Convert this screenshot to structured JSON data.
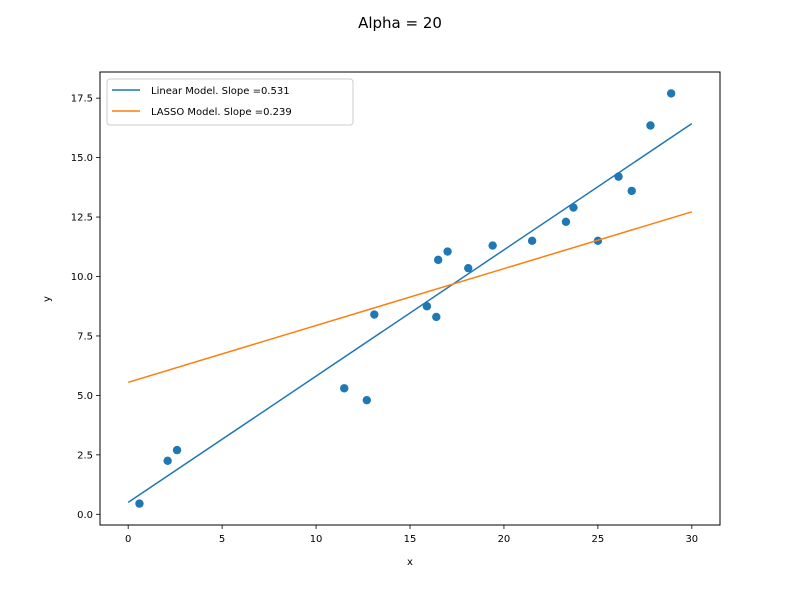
{
  "chart_data": {
    "type": "scatter",
    "title": "Alpha = 20",
    "xlabel": "x",
    "ylabel": "y",
    "xlim": [
      -1.5,
      31.5
    ],
    "ylim": [
      -0.45,
      18.6
    ],
    "xticks": [
      0,
      5,
      10,
      15,
      20,
      25,
      30
    ],
    "xtick_labels": [
      "0",
      "5",
      "10",
      "15",
      "20",
      "25",
      "30"
    ],
    "yticks": [
      0.0,
      2.5,
      5.0,
      7.5,
      10.0,
      12.5,
      15.0,
      17.5
    ],
    "ytick_labels": [
      "0.0",
      "2.5",
      "5.0",
      "7.5",
      "10.0",
      "12.5",
      "15.0",
      "17.5"
    ],
    "grid": false,
    "legend_position": "top-left",
    "points": {
      "color": "#1f77b4",
      "x": [
        0.6,
        2.1,
        2.6,
        11.5,
        12.7,
        13.1,
        15.9,
        16.4,
        16.5,
        17.0,
        18.1,
        19.4,
        21.5,
        23.3,
        23.7,
        25.0,
        26.1,
        26.8,
        27.8,
        28.9
      ],
      "y": [
        0.45,
        2.25,
        2.7,
        5.3,
        4.8,
        8.4,
        8.75,
        8.3,
        10.7,
        11.05,
        10.35,
        11.3,
        11.5,
        12.3,
        12.9,
        11.5,
        14.2,
        13.6,
        16.35,
        17.7
      ]
    },
    "series": [
      {
        "name": "Linear Model. Slope =0.531",
        "color": "#1f77b4",
        "x": [
          0,
          30
        ],
        "y": [
          0.5,
          16.43
        ]
      },
      {
        "name": "LASSO Model. Slope =0.239",
        "color": "#ff7f0e",
        "x": [
          0,
          30
        ],
        "y": [
          5.55,
          12.72
        ]
      }
    ]
  }
}
